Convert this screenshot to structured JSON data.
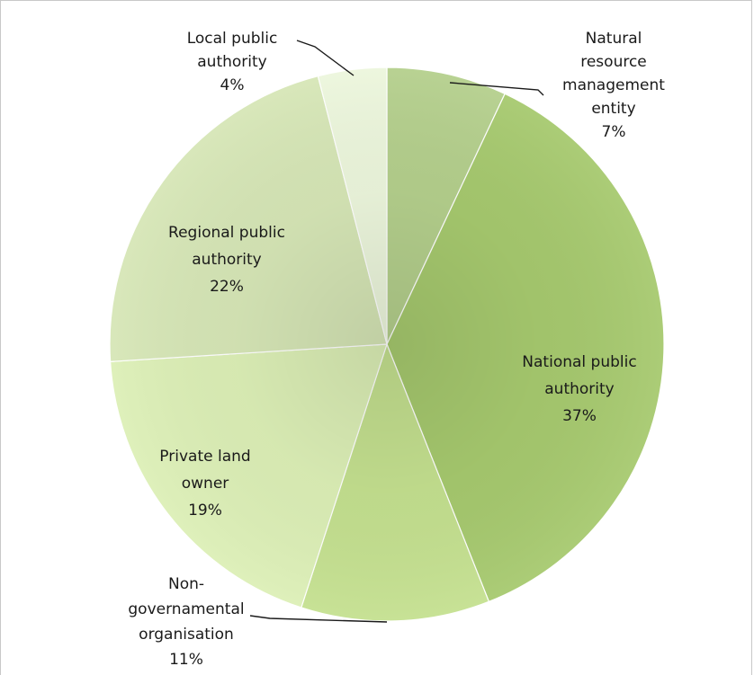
{
  "chart_data": {
    "type": "pie",
    "title": "",
    "slices": [
      {
        "label": "Natural resource management entity",
        "value": 7,
        "percent": "7%",
        "color": "#b4cf8c",
        "label_lines": [
          "Natural",
          "resource",
          "management",
          "entity",
          "7%"
        ]
      },
      {
        "label": "National public authority",
        "value": 37,
        "percent": "37%",
        "color": "#a6c96e",
        "label_lines": [
          "National public",
          "authority",
          "37%"
        ]
      },
      {
        "label": "Non-governamental organisation",
        "value": 11,
        "percent": "11%",
        "color": "#c4e08f",
        "label_lines": [
          "Non-",
          "governamental",
          "organisation",
          "11%"
        ]
      },
      {
        "label": "Private land owner",
        "value": 19,
        "percent": "19%",
        "color": "#dcefb6",
        "label_lines": [
          "Private land",
          "owner",
          "19%"
        ]
      },
      {
        "label": "Regional public authority",
        "value": 22,
        "percent": "22%",
        "color": "#d6e6b6",
        "label_lines": [
          "Regional public",
          "authority",
          "22%"
        ]
      },
      {
        "label": "Local public authority",
        "value": 4,
        "percent": "4%",
        "color": "#ecf6dc",
        "label_lines": [
          "Local public",
          "authority",
          "4%"
        ]
      }
    ],
    "legend": "none",
    "data_labels": "category name and percentage"
  }
}
